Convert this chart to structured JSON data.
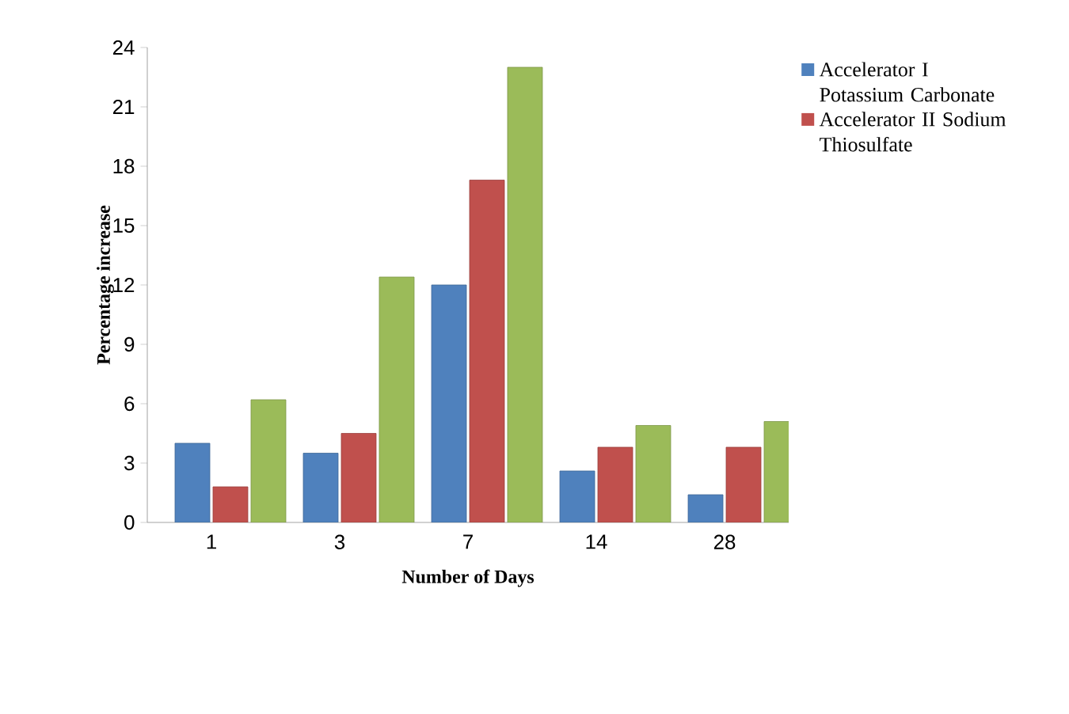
{
  "chart_data": {
    "type": "bar",
    "xlabel": "Number of Days",
    "ylabel": "Percentage increase",
    "categories": [
      "1",
      "3",
      "7",
      "14",
      "28"
    ],
    "series": [
      {
        "name": "Accelerator I Potassium Carbonate",
        "color": "#4f81bd",
        "values": [
          4.0,
          3.5,
          12.0,
          2.6,
          1.4
        ]
      },
      {
        "name": "Accelerator II Sodium Thiosulfate",
        "color": "#c0504d",
        "values": [
          1.8,
          4.5,
          17.3,
          3.8,
          3.8
        ]
      },
      {
        "color": "#9bbb59",
        "values": [
          6.2,
          12.4,
          23.0,
          4.9,
          5.1
        ]
      }
    ],
    "ylim": [
      0,
      24
    ],
    "yticks": [
      0,
      3,
      6,
      9,
      12,
      15,
      18,
      21,
      24
    ],
    "legend": "right"
  }
}
